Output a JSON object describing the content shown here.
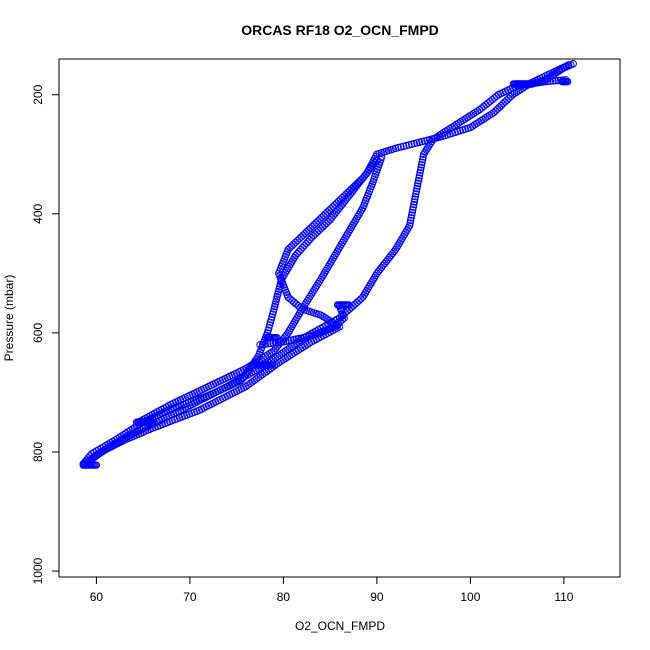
{
  "chart_data": {
    "type": "scatter",
    "title": "ORCAS RF18 O2_OCN_FMPD",
    "xlabel": "O2_OCN_FMPD",
    "ylabel": "Pressure (mbar)",
    "xlim": [
      56,
      116
    ],
    "ylim": [
      1010,
      140
    ],
    "y_reversed": true,
    "x_ticks": [
      60,
      70,
      80,
      90,
      100,
      110
    ],
    "x_tick_labels": [
      "60",
      "70",
      "80",
      "90",
      "100",
      "110"
    ],
    "y_ticks": [
      200,
      400,
      600,
      800,
      1000
    ],
    "y_tick_labels": [
      "200",
      "400",
      "600",
      "800",
      "1000"
    ],
    "grid": false,
    "marker": "open-circle",
    "color": "#0000ff",
    "series": [
      {
        "segments": [
          {
            "x": 58.6,
            "y": 820
          },
          {
            "x": 59.5,
            "y": 803
          },
          {
            "x": 62,
            "y": 780
          },
          {
            "x": 65,
            "y": 750
          },
          {
            "x": 68,
            "y": 728
          },
          {
            "x": 72,
            "y": 705
          },
          {
            "x": 75.5,
            "y": 680
          },
          {
            "x": 77.3,
            "y": 640
          },
          {
            "x": 78.3,
            "y": 600
          },
          {
            "x": 79,
            "y": 560
          },
          {
            "x": 79.8,
            "y": 510
          },
          {
            "x": 81.3,
            "y": 470
          },
          {
            "x": 83,
            "y": 440
          },
          {
            "x": 85,
            "y": 410
          },
          {
            "x": 87,
            "y": 370
          },
          {
            "x": 89,
            "y": 330
          },
          {
            "x": 90,
            "y": 300
          },
          {
            "x": 92,
            "y": 290
          },
          {
            "x": 94,
            "y": 282
          },
          {
            "x": 97,
            "y": 270
          },
          {
            "x": 100,
            "y": 255
          },
          {
            "x": 102.5,
            "y": 230
          },
          {
            "x": 104.5,
            "y": 200
          },
          {
            "x": 106.5,
            "y": 180
          },
          {
            "x": 108.5,
            "y": 165
          },
          {
            "x": 110.5,
            "y": 150
          }
        ]
      },
      {
        "segments": [
          {
            "x": 110.2,
            "y": 175
          },
          {
            "x": 108,
            "y": 178
          },
          {
            "x": 105,
            "y": 185
          },
          {
            "x": 103,
            "y": 200
          },
          {
            "x": 101,
            "y": 225
          },
          {
            "x": 98.5,
            "y": 250
          },
          {
            "x": 96,
            "y": 275
          },
          {
            "x": 95,
            "y": 300
          },
          {
            "x": 94.5,
            "y": 340
          },
          {
            "x": 94,
            "y": 380
          },
          {
            "x": 93.5,
            "y": 420
          },
          {
            "x": 92,
            "y": 460
          },
          {
            "x": 90,
            "y": 500
          },
          {
            "x": 88.5,
            "y": 540
          },
          {
            "x": 86,
            "y": 575
          },
          {
            "x": 82,
            "y": 610
          },
          {
            "x": 78.5,
            "y": 650
          },
          {
            "x": 74,
            "y": 690
          },
          {
            "x": 69,
            "y": 730
          },
          {
            "x": 65,
            "y": 760
          },
          {
            "x": 61.5,
            "y": 790
          },
          {
            "x": 59.5,
            "y": 812
          },
          {
            "x": 58.6,
            "y": 820
          }
        ]
      },
      {
        "segments": [
          {
            "x": 58.6,
            "y": 822
          },
          {
            "x": 60.5,
            "y": 800
          },
          {
            "x": 63,
            "y": 780
          },
          {
            "x": 66,
            "y": 760
          },
          {
            "x": 71,
            "y": 730
          },
          {
            "x": 76,
            "y": 690
          },
          {
            "x": 79.5,
            "y": 650
          },
          {
            "x": 83,
            "y": 615
          },
          {
            "x": 86,
            "y": 590
          },
          {
            "x": 84,
            "y": 570
          },
          {
            "x": 82,
            "y": 560
          },
          {
            "x": 80.5,
            "y": 540
          },
          {
            "x": 79.5,
            "y": 500
          },
          {
            "x": 80.5,
            "y": 460
          },
          {
            "x": 82.5,
            "y": 430
          },
          {
            "x": 84.5,
            "y": 400
          },
          {
            "x": 86.5,
            "y": 370
          },
          {
            "x": 88.5,
            "y": 340
          },
          {
            "x": 90,
            "y": 310
          }
        ]
      },
      {
        "segments": [
          {
            "x": 64.5,
            "y": 750
          },
          {
            "x": 68,
            "y": 720
          },
          {
            "x": 72,
            "y": 690
          },
          {
            "x": 76,
            "y": 660
          },
          {
            "x": 79,
            "y": 630
          },
          {
            "x": 80.5,
            "y": 600
          },
          {
            "x": 82,
            "y": 560
          },
          {
            "x": 84,
            "y": 510
          },
          {
            "x": 85.5,
            "y": 470
          },
          {
            "x": 87,
            "y": 430
          },
          {
            "x": 88.5,
            "y": 390
          },
          {
            "x": 89.5,
            "y": 350
          },
          {
            "x": 90.5,
            "y": 305
          }
        ]
      },
      {
        "segments": [
          {
            "x": 77.5,
            "y": 620
          },
          {
            "x": 80,
            "y": 615
          },
          {
            "x": 83,
            "y": 605
          },
          {
            "x": 85.5,
            "y": 590
          },
          {
            "x": 86.5,
            "y": 575
          },
          {
            "x": 86,
            "y": 555
          }
        ]
      },
      {
        "segments": [
          {
            "x": 105,
            "y": 182
          },
          {
            "x": 106.5,
            "y": 182
          },
          {
            "x": 108,
            "y": 175
          },
          {
            "x": 109,
            "y": 165
          },
          {
            "x": 110,
            "y": 155
          },
          {
            "x": 111,
            "y": 148
          }
        ]
      }
    ],
    "dense_runs": [
      {
        "x0": 58.6,
        "x1": 60.0,
        "y": 822
      },
      {
        "x0": 64.3,
        "x1": 66.0,
        "y": 750
      },
      {
        "x0": 77.2,
        "x1": 78.8,
        "y": 654
      },
      {
        "x0": 78.3,
        "x1": 79.3,
        "y": 608
      },
      {
        "x0": 85.8,
        "x1": 87.0,
        "y": 553
      },
      {
        "x0": 104.6,
        "x1": 106.6,
        "y": 182
      },
      {
        "x0": 109.8,
        "x1": 110.4,
        "y": 178
      }
    ]
  }
}
